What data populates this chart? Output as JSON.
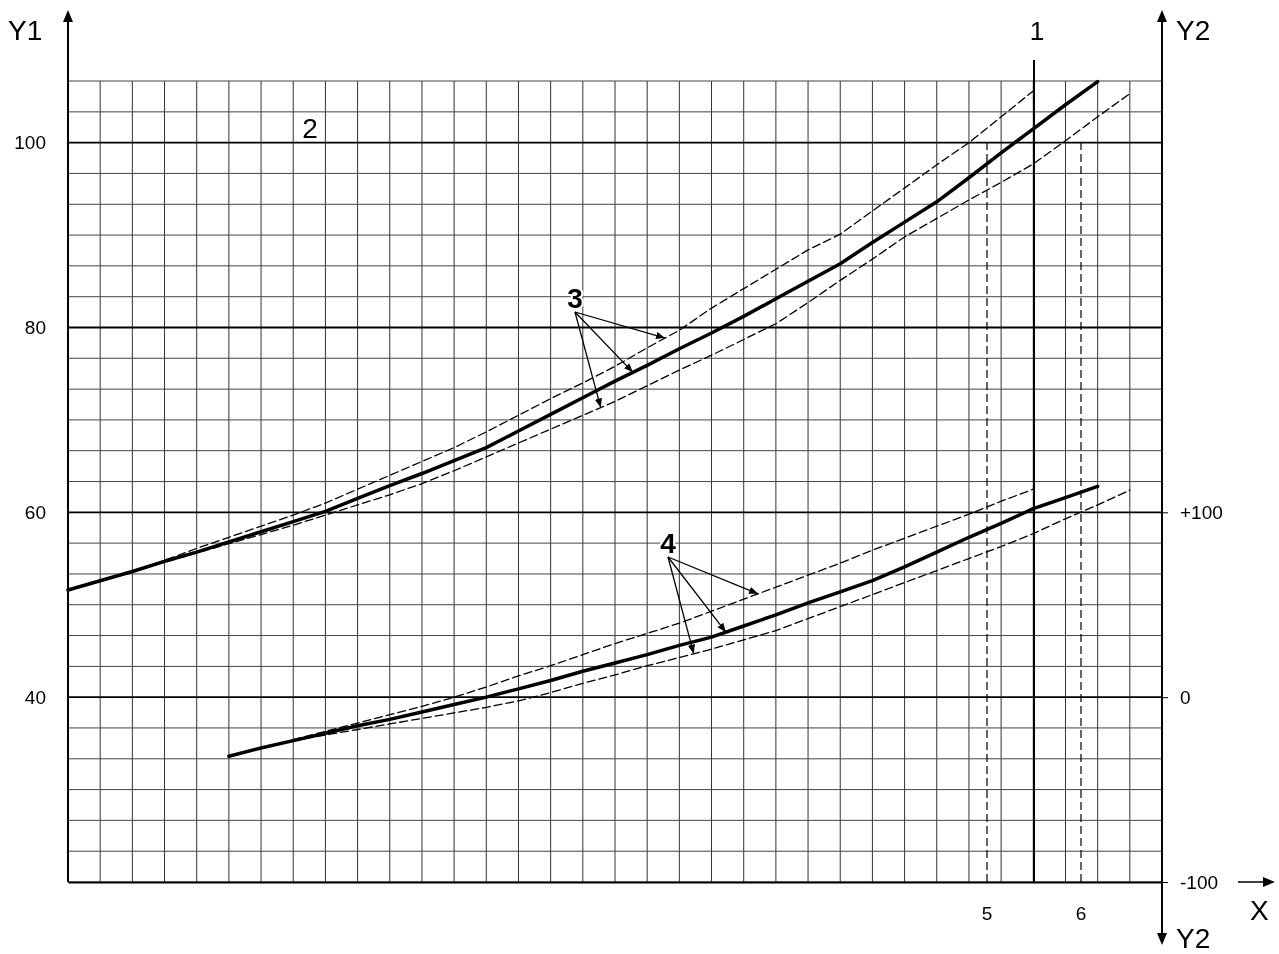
{
  "chart_data": {
    "type": "line",
    "xlabel": "X",
    "ylabel": "Y1",
    "y2label": "Y2",
    "categories": [
      null,
      null,
      null,
      null,
      null,
      null,
      null,
      null,
      null,
      null,
      null,
      null,
      null,
      null,
      null,
      null,
      null,
      null,
      null,
      null,
      null,
      null,
      null,
      null,
      null,
      null,
      null,
      null,
      null,
      null,
      null,
      null,
      null,
      null,
      null
    ],
    "ylim": [
      20,
      106.67
    ],
    "yticks": [
      {
        "value": 20,
        "label": null
      },
      {
        "value": 23.33,
        "label": null
      },
      {
        "value": 26.67,
        "label": null
      },
      {
        "value": 30,
        "label": null
      },
      {
        "value": 33.33,
        "label": null
      },
      {
        "value": 36.67,
        "label": null
      },
      40,
      {
        "value": 43.33,
        "label": null
      },
      {
        "value": 46.67,
        "label": null
      },
      {
        "value": 50,
        "label": null
      },
      {
        "value": 53.33,
        "label": null
      },
      {
        "value": 56.67,
        "label": null
      },
      60,
      {
        "value": 63.33,
        "label": null
      },
      {
        "value": 66.67,
        "label": null
      },
      {
        "value": 70,
        "label": null
      },
      {
        "value": 73.33,
        "label": null
      },
      {
        "value": 76.67,
        "label": null
      },
      80,
      {
        "value": 83.33,
        "label": null
      },
      {
        "value": 86.67,
        "label": null
      },
      {
        "value": 90,
        "label": null
      },
      {
        "value": 93.33,
        "label": null
      },
      {
        "value": 96.67,
        "label": null
      },
      100,
      {
        "value": 103.33,
        "label": null
      },
      {
        "value": 106.67,
        "label": null
      }
    ],
    "y2lim": [
      -100,
      333.33
    ],
    "y2ticks": [
      -100,
      0,
      {
        "value": 100,
        "label": "+100"
      }
    ],
    "grid": true,
    "tick_labels": "y",
    "series": [
      {
        "color": "#000000",
        "line_style": "solid",
        "values": [
          51.6,
          52.6,
          53.6,
          54.7,
          55.7,
          56.8,
          57.9,
          59.0,
          60.1,
          61.5,
          62.9,
          64.2,
          65.6,
          67.0,
          68.8,
          70.6,
          72.4,
          74.2,
          75.9,
          77.7,
          79.4,
          81.2,
          83.1,
          85.0,
          86.9,
          89.2,
          91.4,
          93.6,
          96.2,
          98.9,
          101.5,
          104.1,
          106.6,
          null,
          null
        ]
      },
      {
        "color": "#000000",
        "line_style": "dashed",
        "values": [
          null,
          null,
          53.6,
          54.8,
          56.1,
          57.3,
          58.5,
          59.7,
          61.0,
          62.5,
          64.0,
          65.5,
          67.0,
          68.7,
          70.5,
          72.3,
          74.0,
          75.8,
          77.8,
          79.7,
          82.1,
          84.2,
          86.3,
          88.4,
          90.1,
          92.6,
          95.1,
          97.6,
          100.0,
          102.8,
          105.6,
          null,
          null,
          null,
          null
        ]
      },
      {
        "color": "#000000",
        "line_style": "dashed",
        "values": [
          null,
          null,
          53.6,
          54.6,
          55.6,
          56.6,
          57.6,
          58.6,
          59.7,
          60.8,
          61.9,
          63.1,
          64.5,
          66.0,
          67.5,
          69.0,
          70.5,
          72.0,
          73.7,
          75.4,
          77.0,
          78.7,
          80.4,
          82.7,
          85.1,
          87.4,
          89.8,
          91.8,
          93.8,
          95.7,
          97.7,
          100.2,
          102.8,
          105.3,
          null
        ]
      },
      {
        "color": "#000000",
        "line_style": "solid",
        "values": [
          null,
          null,
          null,
          null,
          null,
          33.6,
          34.5,
          35.3,
          36.1,
          36.9,
          37.6,
          38.4,
          39.2,
          40.0,
          40.9,
          41.8,
          42.8,
          43.7,
          44.6,
          45.6,
          46.5,
          47.7,
          48.9,
          50.2,
          51.4,
          52.6,
          54.1,
          55.7,
          57.3,
          58.8,
          60.4,
          61.6,
          62.8,
          null,
          null
        ]
      },
      {
        "color": "#000000",
        "line_style": "dashed",
        "values": [
          null,
          null,
          null,
          null,
          null,
          null,
          null,
          35.4,
          36.3,
          37.2,
          38.1,
          39.0,
          40.0,
          41.1,
          42.3,
          43.4,
          44.6,
          45.8,
          46.9,
          48.0,
          49.3,
          50.6,
          51.9,
          53.2,
          54.5,
          55.9,
          57.2,
          58.5,
          59.8,
          61.2,
          62.5,
          null,
          null,
          null,
          null
        ]
      },
      {
        "color": "#000000",
        "line_style": "dashed",
        "values": [
          null,
          null,
          null,
          null,
          null,
          null,
          null,
          35.3,
          35.9,
          36.5,
          37.1,
          37.7,
          38.3,
          38.9,
          39.6,
          40.5,
          41.5,
          42.4,
          43.4,
          44.3,
          45.2,
          46.2,
          47.2,
          48.5,
          49.8,
          51.1,
          52.4,
          53.7,
          55.0,
          56.3,
          57.7,
          59.3,
          60.8,
          62.4,
          null
        ]
      }
    ],
    "annotations": [
      "1",
      "2",
      "3",
      "4",
      "5",
      "6"
    ]
  }
}
